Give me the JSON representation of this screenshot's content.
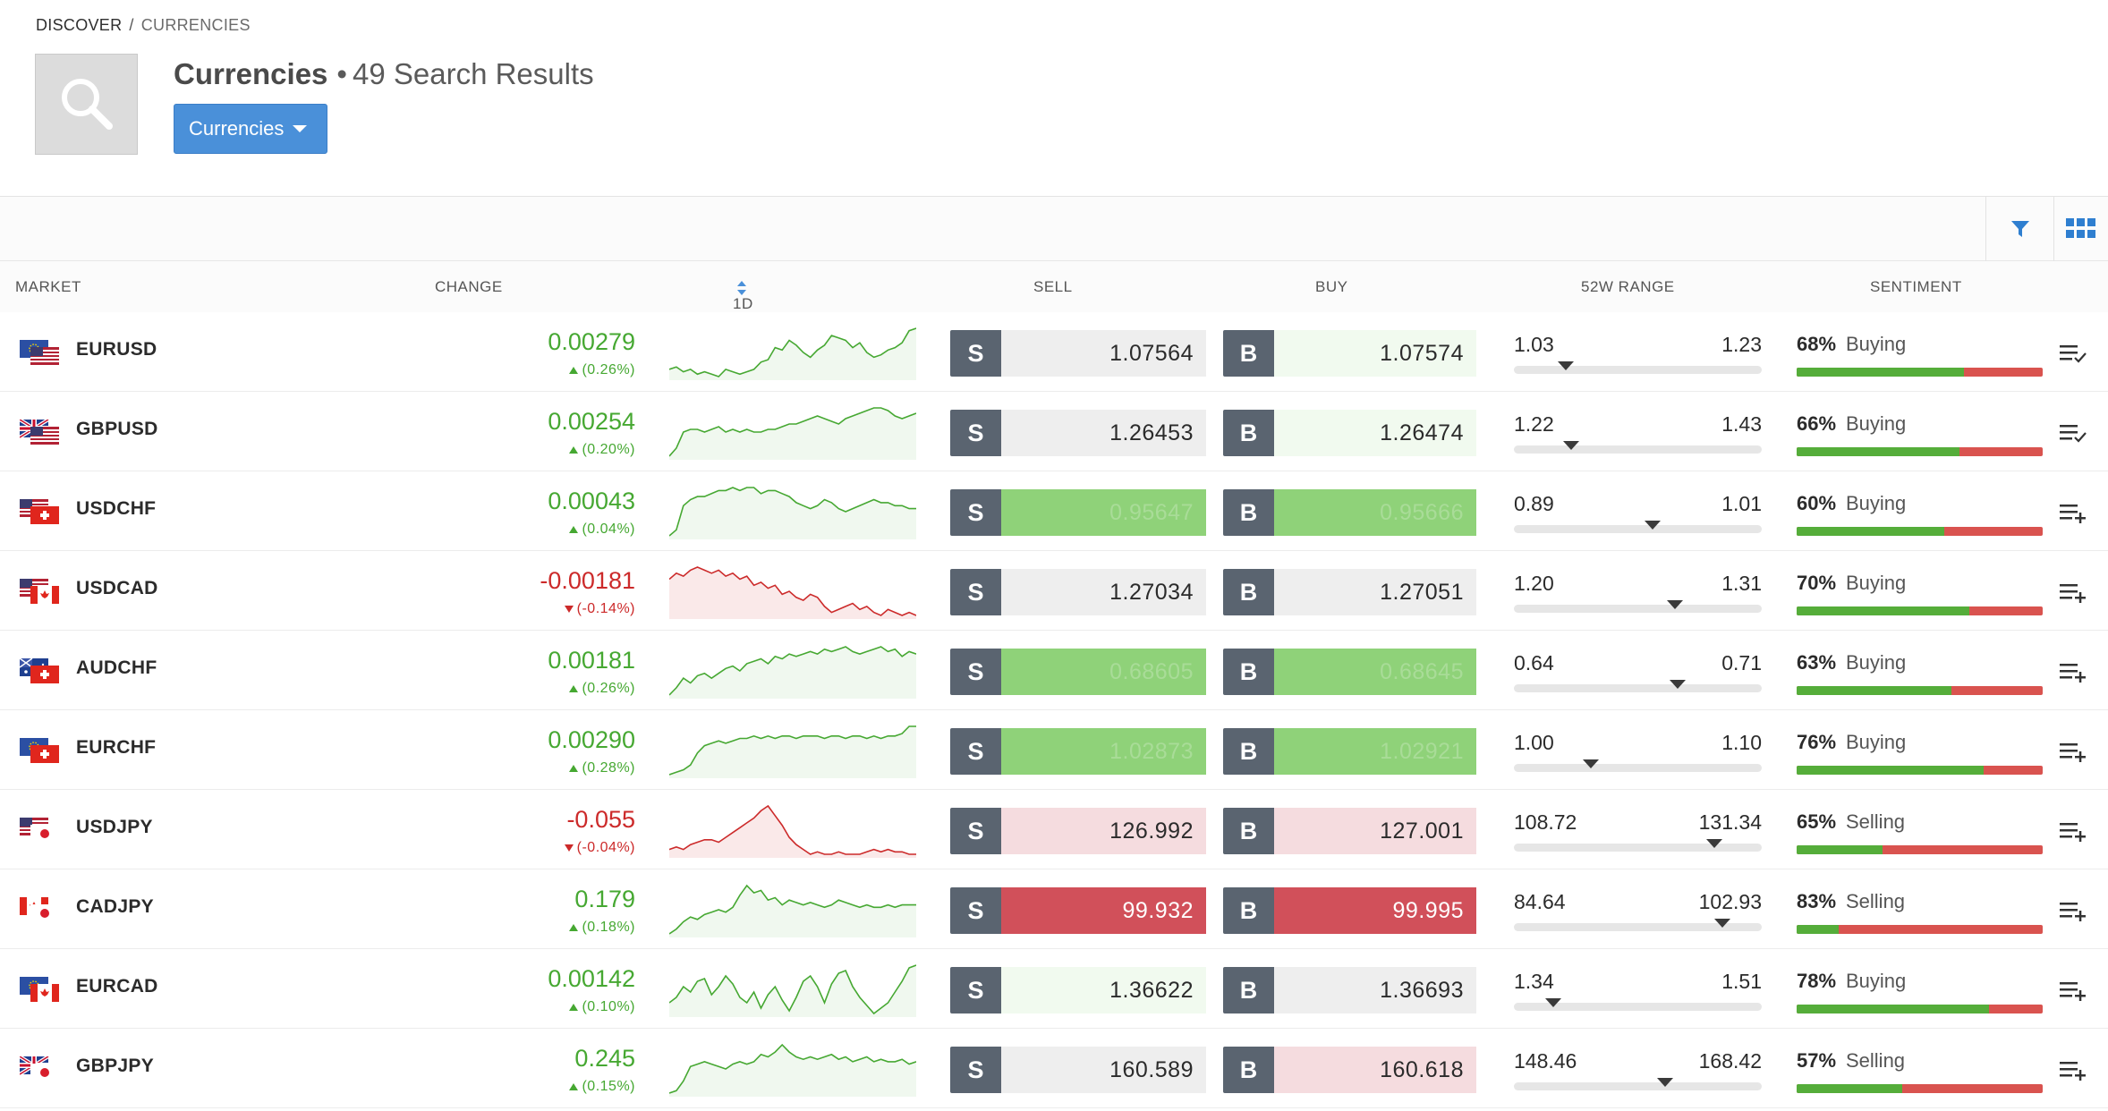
{
  "breadcrumb": {
    "root": "DISCOVER",
    "separator": "/",
    "current": "CURRENCIES"
  },
  "page": {
    "title": "Currencies",
    "dot": "•",
    "results": "49 Search Results",
    "dropdown_label": "Currencies"
  },
  "columns": {
    "market": "MARKET",
    "change": "CHANGE",
    "period": "1D",
    "sell": "SELL",
    "buy": "BUY",
    "range": "52W RANGE",
    "sentiment": "SENTIMENT"
  },
  "trade_labels": {
    "sell": "S",
    "buy": "B"
  },
  "colors": {
    "up": "#46a832",
    "down": "#cc2a2a",
    "accent": "#4a90d9",
    "tag": "#5a6470"
  },
  "rows": [
    {
      "symbol": "EURUSD",
      "flags": [
        "eu",
        "us"
      ],
      "change": "0.00279",
      "pct": "(0.26%)",
      "dir": "up",
      "spark": [
        3,
        4,
        2,
        3,
        1,
        2,
        1,
        0,
        3,
        2,
        1,
        2,
        3,
        6,
        7,
        12,
        11,
        15,
        13,
        10,
        8,
        11,
        13,
        17,
        16,
        15,
        12,
        14,
        10,
        8,
        9,
        11,
        12,
        14,
        19,
        20
      ],
      "sell": "1.07564",
      "sell_style": "light",
      "buy": "1.07574",
      "buy_style": "lgreen",
      "low": "1.03",
      "high": "1.23",
      "range_pos": 0.21,
      "sent_pct": "68%",
      "sent_label": "Buying",
      "sent_val": 0.68,
      "menu": "check"
    },
    {
      "symbol": "GBPUSD",
      "flags": [
        "gb",
        "us"
      ],
      "change": "0.00254",
      "pct": "(0.20%)",
      "dir": "up",
      "spark": [
        0,
        3,
        9,
        10,
        10,
        9,
        10,
        11,
        9,
        10,
        9,
        10,
        9,
        9,
        10,
        10,
        11,
        12,
        12,
        13,
        14,
        15,
        14,
        13,
        12,
        14,
        15,
        16,
        17,
        18,
        18,
        17,
        15,
        14,
        15,
        16
      ],
      "sell": "1.26453",
      "sell_style": "light",
      "buy": "1.26474",
      "buy_style": "lgreen",
      "low": "1.22",
      "high": "1.43",
      "range_pos": 0.23,
      "sent_pct": "66%",
      "sent_label": "Buying",
      "sent_val": 0.66,
      "menu": "check"
    },
    {
      "symbol": "USDCHF",
      "flags": [
        "us",
        "ch"
      ],
      "change": "0.00043",
      "pct": "(0.04%)",
      "dir": "up",
      "spark": [
        0,
        2,
        10,
        12,
        13,
        13,
        14,
        15,
        15,
        16,
        15,
        16,
        16,
        14,
        15,
        15,
        14,
        13,
        11,
        10,
        9,
        10,
        12,
        11,
        9,
        8,
        9,
        10,
        11,
        12,
        11,
        11,
        10,
        10,
        9,
        9
      ],
      "sell": "0.95647",
      "sell_style": "green",
      "buy": "0.95666",
      "buy_style": "green",
      "low": "0.89",
      "high": "1.01",
      "range_pos": 0.56,
      "sent_pct": "60%",
      "sent_label": "Buying",
      "sent_val": 0.6,
      "menu": "plus"
    },
    {
      "symbol": "USDCAD",
      "flags": [
        "us",
        "ca"
      ],
      "change": "-0.00181",
      "pct": "(-0.14%)",
      "dir": "down",
      "spark": [
        12,
        14,
        13,
        15,
        16,
        15,
        14,
        15,
        13,
        14,
        12,
        13,
        10,
        11,
        9,
        10,
        7,
        8,
        6,
        5,
        7,
        6,
        3,
        1,
        2,
        3,
        4,
        2,
        3,
        1,
        0,
        2,
        1,
        0,
        1,
        0
      ],
      "sell": "1.27034",
      "sell_style": "light",
      "buy": "1.27051",
      "buy_style": "light",
      "low": "1.20",
      "high": "1.31",
      "range_pos": 0.65,
      "sent_pct": "70%",
      "sent_label": "Buying",
      "sent_val": 0.7,
      "menu": "plus"
    },
    {
      "symbol": "AUDCHF",
      "flags": [
        "au",
        "ch"
      ],
      "change": "0.00181",
      "pct": "(0.26%)",
      "dir": "up",
      "spark": [
        0,
        3,
        7,
        5,
        8,
        9,
        7,
        9,
        11,
        12,
        10,
        13,
        14,
        15,
        13,
        16,
        15,
        17,
        16,
        17,
        18,
        17,
        19,
        18,
        19,
        20,
        18,
        17,
        18,
        19,
        20,
        18,
        19,
        16,
        18,
        17
      ],
      "sell": "0.68605",
      "sell_style": "green",
      "buy": "0.68645",
      "buy_style": "green",
      "low": "0.64",
      "high": "0.71",
      "range_pos": 0.66,
      "sent_pct": "63%",
      "sent_label": "Buying",
      "sent_val": 0.63,
      "menu": "plus"
    },
    {
      "symbol": "EURCHF",
      "flags": [
        "eu",
        "ch"
      ],
      "change": "0.00290",
      "pct": "(0.28%)",
      "dir": "up",
      "spark": [
        0,
        1,
        2,
        4,
        9,
        12,
        13,
        14,
        13,
        14,
        15,
        15,
        16,
        15,
        16,
        15,
        16,
        16,
        15,
        16,
        16,
        16,
        15,
        16,
        16,
        15,
        16,
        16,
        15,
        16,
        15,
        16,
        16,
        17,
        20,
        20
      ],
      "sell": "1.02873",
      "sell_style": "green",
      "buy": "1.02921",
      "buy_style": "green",
      "low": "1.00",
      "high": "1.10",
      "range_pos": 0.31,
      "sent_pct": "76%",
      "sent_label": "Buying",
      "sent_val": 0.76,
      "menu": "plus"
    },
    {
      "symbol": "USDJPY",
      "flags": [
        "us",
        "jp"
      ],
      "change": "-0.055",
      "pct": "(-0.04%)",
      "dir": "down",
      "spark": [
        2,
        3,
        2,
        4,
        5,
        6,
        6,
        5,
        7,
        9,
        11,
        13,
        15,
        18,
        20,
        16,
        12,
        7,
        4,
        2,
        0,
        1,
        0,
        0,
        1,
        0,
        0,
        0,
        1,
        2,
        1,
        2,
        1,
        1,
        0,
        0
      ],
      "sell": "126.992",
      "sell_style": "pink",
      "buy": "127.001",
      "buy_style": "pink",
      "low": "108.72",
      "high": "131.34",
      "range_pos": 0.81,
      "sent_pct": "65%",
      "sent_label": "Selling",
      "sent_val": 0.35,
      "menu": "plus"
    },
    {
      "symbol": "CADJPY",
      "flags": [
        "ca",
        "jp"
      ],
      "change": "0.179",
      "pct": "(0.18%)",
      "dir": "up",
      "spark": [
        0,
        2,
        5,
        7,
        6,
        8,
        9,
        10,
        9,
        11,
        16,
        20,
        17,
        18,
        14,
        15,
        12,
        14,
        13,
        12,
        13,
        12,
        11,
        12,
        14,
        13,
        12,
        11,
        12,
        11,
        11,
        12,
        11,
        12,
        12,
        12
      ],
      "sell": "99.932",
      "sell_style": "red",
      "buy": "99.995",
      "buy_style": "red",
      "low": "84.64",
      "high": "102.93",
      "range_pos": 0.84,
      "sent_pct": "83%",
      "sent_label": "Selling",
      "sent_val": 0.17,
      "menu": "plus"
    },
    {
      "symbol": "EURCAD",
      "flags": [
        "eu",
        "ca"
      ],
      "change": "0.00142",
      "pct": "(0.10%)",
      "dir": "up",
      "spark": [
        6,
        8,
        12,
        10,
        14,
        15,
        9,
        12,
        16,
        13,
        8,
        6,
        10,
        4,
        9,
        12,
        7,
        3,
        8,
        14,
        16,
        12,
        6,
        13,
        17,
        18,
        12,
        8,
        5,
        2,
        4,
        6,
        10,
        14,
        19,
        20
      ],
      "sell": "1.36622",
      "sell_style": "lgreen",
      "buy": "1.36693",
      "buy_style": "light",
      "low": "1.34",
      "high": "1.51",
      "range_pos": 0.16,
      "sent_pct": "78%",
      "sent_label": "Buying",
      "sent_val": 0.78,
      "menu": "plus"
    },
    {
      "symbol": "GBPJPY",
      "flags": [
        "gb",
        "jp"
      ],
      "change": "0.245",
      "pct": "(0.15%)",
      "dir": "up",
      "spark": [
        0,
        1,
        5,
        11,
        12,
        13,
        12,
        11,
        10,
        12,
        13,
        12,
        13,
        16,
        15,
        17,
        20,
        17,
        15,
        14,
        15,
        14,
        15,
        16,
        14,
        15,
        13,
        14,
        15,
        13,
        14,
        13,
        13,
        14,
        12,
        13
      ],
      "sell": "160.589",
      "sell_style": "light",
      "buy": "160.618",
      "buy_style": "pink",
      "low": "148.46",
      "high": "168.42",
      "range_pos": 0.61,
      "sent_pct": "57%",
      "sent_label": "Selling",
      "sent_val": 0.43,
      "menu": "plus"
    }
  ]
}
